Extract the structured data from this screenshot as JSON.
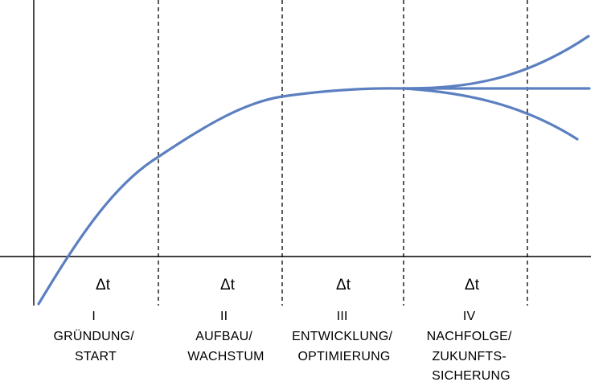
{
  "phases": [
    {
      "delta": "Δt",
      "numeral": "I",
      "lines": [
        "GRÜNDUNG/",
        "START"
      ]
    },
    {
      "delta": "Δt",
      "numeral": "II",
      "lines": [
        "AUFBAU/",
        "WACHSTUM"
      ]
    },
    {
      "delta": "Δt",
      "numeral": "III",
      "lines": [
        "ENTWICKLUNG/",
        "OPTIMIERUNG"
      ]
    },
    {
      "delta": "Δt",
      "numeral": "IV",
      "lines": [
        "NACHFOLGE/",
        "ZUKUNFTS-",
        "SICHERUNG"
      ]
    }
  ],
  "colors": {
    "curve": "#5b7fc0",
    "axis": "#000000",
    "text": "#000000"
  },
  "outcomes": [
    "growth",
    "stable",
    "decline"
  ]
}
